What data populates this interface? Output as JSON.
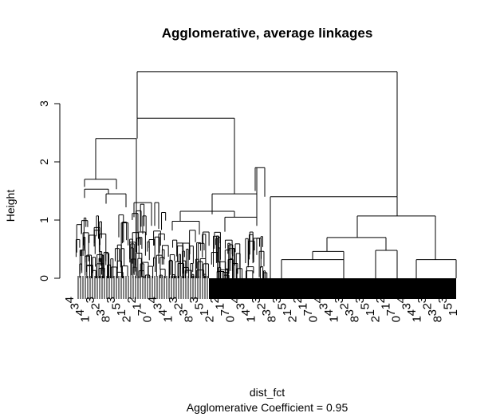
{
  "chart_data": {
    "type": "dendrogram",
    "title": "Agglomerative, average linkages",
    "xlabel": "dist_fct",
    "sub": "Agglomerative Coefficient =  0.95",
    "ylabel": "Height",
    "ylim": [
      0,
      3.6
    ],
    "yticks": [
      0,
      1,
      2,
      3
    ],
    "merge_heights": {
      "root": 3.55,
      "left_main": 2.75,
      "left_middle": 2.4,
      "left_group": 1.7,
      "middle_group": 1.45,
      "right_main": 1.4,
      "right_sub": 1.07,
      "right_inner": 0.7,
      "right_small": 0.32
    },
    "visible_leaf_labels": [
      "4",
      "3",
      "4",
      "1",
      "3",
      "2",
      "3",
      "8",
      "3",
      "5",
      "1",
      "2",
      "2",
      "1",
      "7",
      "0"
    ]
  }
}
